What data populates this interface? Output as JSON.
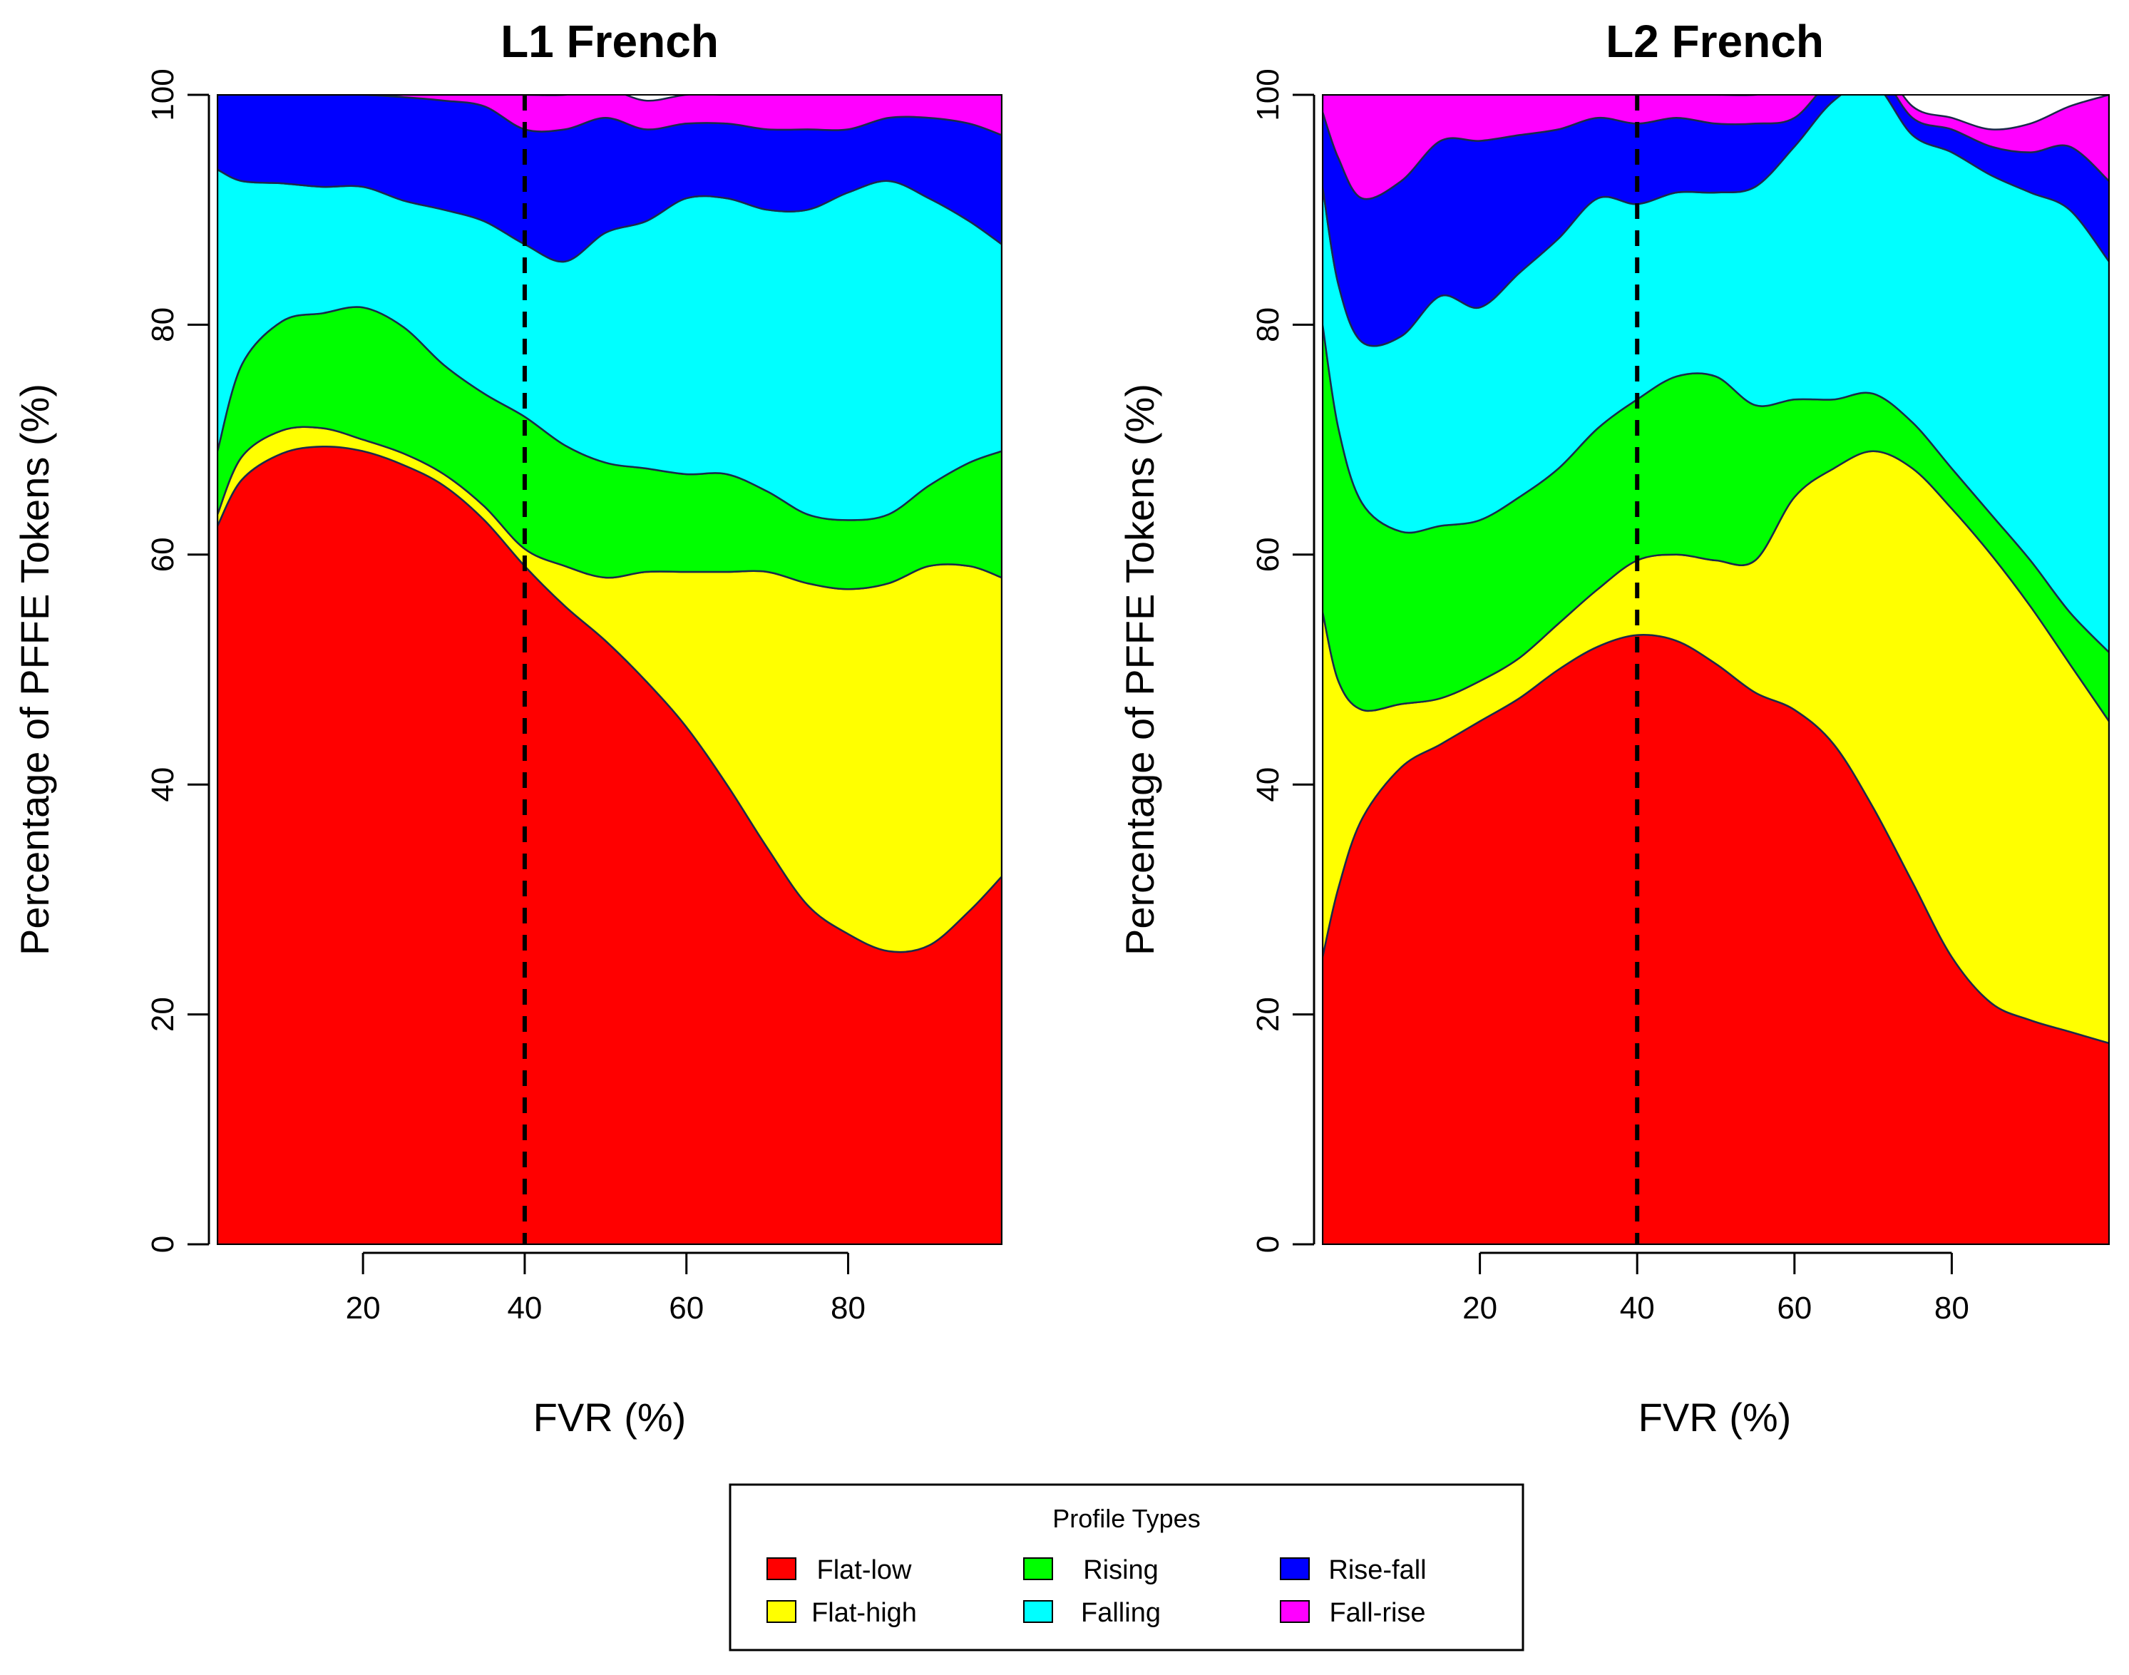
{
  "chart_data": [
    {
      "type": "area",
      "stacked": true,
      "title": "L1 French",
      "xlabel": "FVR (%)",
      "ylabel": "Percentage of PFFE Tokens (%)",
      "xlim": [
        2,
        99
      ],
      "ylim": [
        0,
        100
      ],
      "xticks": [
        20,
        40,
        60,
        80
      ],
      "yticks": [
        0,
        20,
        40,
        60,
        80,
        100
      ],
      "reference_line_x": 40,
      "x": [
        2,
        5,
        10,
        15,
        20,
        25,
        30,
        35,
        40,
        45,
        50,
        55,
        60,
        65,
        70,
        75,
        80,
        85,
        90,
        95,
        99
      ],
      "series": [
        {
          "name": "Flat-low",
          "values": [
            62.5,
            66.5,
            68.8,
            69.4,
            69.0,
            67.8,
            66.0,
            63.0,
            59.0,
            55.5,
            52.5,
            49.0,
            45.0,
            40.0,
            34.5,
            29.5,
            27.0,
            25.5,
            26.0,
            29.0,
            32.0
          ]
        },
        {
          "name": "Flat-high",
          "values": [
            1.0,
            2.0,
            2.0,
            1.6,
            1.0,
            1.0,
            1.0,
            1.2,
            1.5,
            3.5,
            5.5,
            9.5,
            13.5,
            18.5,
            24.0,
            28.0,
            30.0,
            32.0,
            33.0,
            30.0,
            26.0
          ]
        },
        {
          "name": "Rising",
          "values": [
            5.5,
            8.0,
            9.5,
            10.0,
            11.5,
            11.0,
            9.5,
            9.8,
            11.5,
            10.5,
            10.0,
            9.0,
            8.5,
            8.5,
            7.0,
            6.0,
            6.0,
            6.0,
            7.0,
            9.0,
            11.0
          ]
        },
        {
          "name": "Falling",
          "values": [
            24.5,
            16.0,
            12.0,
            11.0,
            10.5,
            11.0,
            13.5,
            15.0,
            15.0,
            16.0,
            20.0,
            21.5,
            24.0,
            24.0,
            24.5,
            26.5,
            28.5,
            29.0,
            25.0,
            21.0,
            18.0
          ]
        },
        {
          "name": "Rise-fall",
          "values": [
            6.5,
            7.5,
            7.7,
            8.0,
            8.0,
            9.0,
            9.5,
            10.0,
            10.0,
            11.5,
            10.0,
            8.0,
            6.5,
            6.5,
            7.0,
            7.0,
            5.5,
            5.5,
            7.0,
            8.5,
            9.5
          ]
        },
        {
          "name": "Fall-rise",
          "values": [
            0.0,
            0.0,
            0.0,
            0.0,
            0.0,
            0.2,
            0.5,
            1.0,
            3.0,
            3.0,
            2.5,
            2.5,
            2.5,
            2.5,
            3.0,
            3.0,
            3.0,
            2.0,
            2.0,
            2.5,
            3.5
          ]
        }
      ]
    },
    {
      "type": "area",
      "stacked": true,
      "title": "L2 French",
      "xlabel": "FVR (%)",
      "ylabel": "Percentage of PFFE Tokens (%)",
      "xlim": [
        0,
        100
      ],
      "ylim": [
        0,
        100
      ],
      "xticks": [
        20,
        40,
        60,
        80
      ],
      "yticks": [
        0,
        20,
        40,
        60,
        80,
        100
      ],
      "reference_line_x": 40,
      "x": [
        0,
        2,
        5,
        10,
        15,
        20,
        25,
        30,
        35,
        40,
        45,
        50,
        55,
        60,
        65,
        70,
        75,
        80,
        85,
        90,
        95,
        100
      ],
      "series": [
        {
          "name": "Flat-low",
          "values": [
            25.0,
            31.0,
            37.0,
            41.5,
            43.5,
            45.5,
            47.5,
            50.0,
            52.0,
            53.0,
            52.5,
            50.5,
            48.0,
            46.5,
            43.5,
            38.0,
            31.5,
            25.0,
            21.0,
            19.5,
            18.5,
            17.5
          ]
        },
        {
          "name": "Flat-high",
          "values": [
            30.0,
            18.0,
            9.5,
            5.5,
            4.0,
            3.5,
            3.5,
            4.0,
            5.0,
            6.5,
            7.5,
            9.0,
            11.5,
            18.5,
            24.0,
            31.0,
            36.0,
            39.0,
            39.0,
            36.0,
            32.0,
            28.0
          ]
        },
        {
          "name": "Rising",
          "values": [
            25.0,
            22.0,
            18.0,
            15.0,
            15.0,
            14.0,
            14.0,
            13.5,
            14.0,
            14.0,
            15.5,
            16.0,
            13.5,
            8.5,
            6.0,
            5.0,
            4.0,
            3.5,
            3.5,
            4.0,
            4.5,
            6.0
          ]
        },
        {
          "name": "Falling",
          "values": [
            12.0,
            12.5,
            14.0,
            17.0,
            20.0,
            18.5,
            19.5,
            20.0,
            20.0,
            17.0,
            16.0,
            16.0,
            19.0,
            22.0,
            26.0,
            27.0,
            25.0,
            27.5,
            29.5,
            32.0,
            35.0,
            34.0
          ]
        },
        {
          "name": "Rise-fall",
          "values": [
            6.5,
            11.0,
            12.5,
            13.5,
            13.5,
            14.5,
            12.0,
            9.5,
            7.0,
            7.0,
            6.5,
            6.0,
            5.5,
            2.5,
            2.0,
            1.5,
            1.5,
            2.0,
            2.5,
            3.5,
            5.5,
            7.0
          ]
        },
        {
          "name": "Fall-rise",
          "values": [
            1.5,
            5.5,
            9.0,
            7.5,
            4.0,
            4.0,
            3.5,
            3.0,
            2.0,
            2.5,
            2.0,
            2.5,
            2.5,
            2.5,
            1.5,
            1.0,
            1.0,
            1.0,
            1.5,
            2.5,
            3.5,
            7.5
          ]
        }
      ]
    }
  ],
  "legend": {
    "title": "Profile Types",
    "items": [
      {
        "label": "Flat-low",
        "color": "#ff0000"
      },
      {
        "label": "Flat-high",
        "color": "#ffff00"
      },
      {
        "label": "Rising",
        "color": "#00ff00"
      },
      {
        "label": "Falling",
        "color": "#00ffff"
      },
      {
        "label": "Rise-fall",
        "color": "#0000ff"
      },
      {
        "label": "Fall-rise",
        "color": "#ff00ff"
      }
    ]
  }
}
